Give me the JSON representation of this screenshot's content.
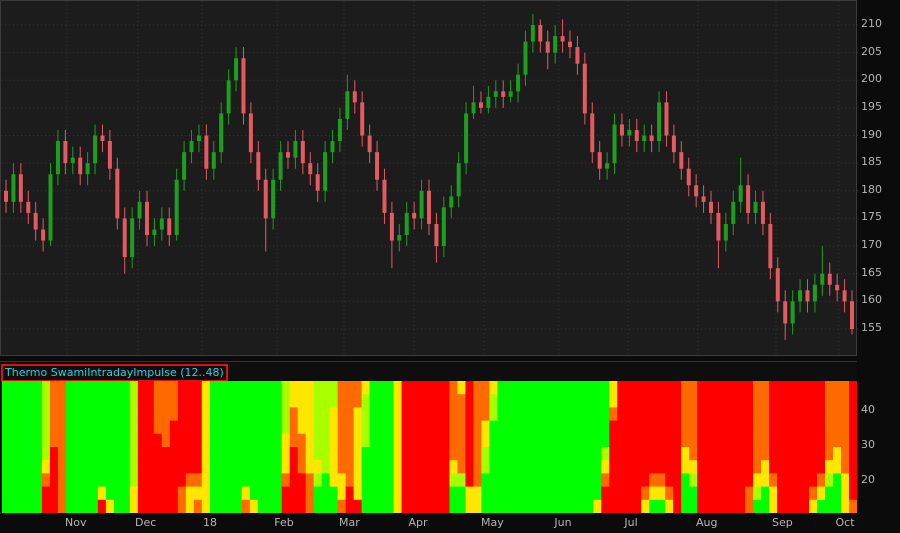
{
  "price_chart": {
    "type": "candlestick",
    "y_ticks": [
      155,
      160,
      165,
      170,
      175,
      180,
      185,
      190,
      195,
      200,
      205,
      210
    ],
    "colors": {
      "up": "#1e9e1e",
      "down": "#e35a60",
      "background": "#1c1c1c"
    },
    "candles": [
      [
        180,
        182,
        176,
        178
      ],
      [
        178,
        185,
        176,
        183
      ],
      [
        183,
        185,
        176,
        178
      ],
      [
        178,
        180,
        174,
        176
      ],
      [
        176,
        178,
        171,
        173
      ],
      [
        173,
        175,
        169,
        171
      ],
      [
        171,
        185,
        170,
        183
      ],
      [
        183,
        191,
        181,
        189
      ],
      [
        189,
        191,
        183,
        185
      ],
      [
        185,
        188,
        183,
        186
      ],
      [
        186,
        188,
        181,
        183
      ],
      [
        183,
        187,
        181,
        185
      ],
      [
        185,
        192,
        183,
        190
      ],
      [
        190,
        192,
        187,
        189
      ],
      [
        189,
        191,
        182,
        184
      ],
      [
        184,
        186,
        173,
        175
      ],
      [
        175,
        177,
        165,
        168
      ],
      [
        168,
        177,
        166,
        175
      ],
      [
        175,
        180,
        173,
        178
      ],
      [
        178,
        180,
        170,
        172
      ],
      [
        172,
        175,
        170,
        173
      ],
      [
        173,
        177,
        171,
        175
      ],
      [
        175,
        177,
        170,
        172
      ],
      [
        172,
        184,
        171,
        182
      ],
      [
        182,
        189,
        180,
        187
      ],
      [
        187,
        191,
        185,
        189
      ],
      [
        189,
        192,
        187,
        190
      ],
      [
        190,
        192,
        182,
        184
      ],
      [
        184,
        189,
        182,
        187
      ],
      [
        187,
        196,
        185,
        194
      ],
      [
        194,
        202,
        192,
        200
      ],
      [
        200,
        206,
        198,
        204
      ],
      [
        204,
        206,
        192,
        194
      ],
      [
        194,
        196,
        185,
        187
      ],
      [
        187,
        189,
        180,
        182
      ],
      [
        182,
        184,
        169,
        175
      ],
      [
        175,
        184,
        173,
        182
      ],
      [
        182,
        189,
        180,
        187
      ],
      [
        187,
        189,
        184,
        186
      ],
      [
        186,
        191,
        184,
        189
      ],
      [
        189,
        191,
        183,
        185
      ],
      [
        185,
        187,
        181,
        183
      ],
      [
        183,
        185,
        178,
        180
      ],
      [
        180,
        189,
        178,
        187
      ],
      [
        187,
        191,
        185,
        189
      ],
      [
        189,
        195,
        187,
        193
      ],
      [
        193,
        201,
        191,
        198
      ],
      [
        198,
        200,
        194,
        196
      ],
      [
        196,
        198,
        188,
        190
      ],
      [
        190,
        192,
        185,
        187
      ],
      [
        187,
        189,
        180,
        182
      ],
      [
        182,
        184,
        174,
        176
      ],
      [
        176,
        178,
        166,
        171
      ],
      [
        171,
        174,
        169,
        172
      ],
      [
        172,
        178,
        170,
        176
      ],
      [
        176,
        178,
        173,
        175
      ],
      [
        175,
        182,
        173,
        180
      ],
      [
        180,
        182,
        172,
        174
      ],
      [
        174,
        176,
        167,
        170
      ],
      [
        170,
        179,
        168,
        177
      ],
      [
        177,
        181,
        175,
        179
      ],
      [
        179,
        187,
        177,
        185
      ],
      [
        185,
        196,
        183,
        194
      ],
      [
        194,
        199,
        193,
        196
      ],
      [
        196,
        198,
        194,
        195
      ],
      [
        195,
        199,
        194,
        197
      ],
      [
        197,
        200,
        195,
        198
      ],
      [
        198,
        200,
        195,
        197
      ],
      [
        197,
        200,
        196,
        198
      ],
      [
        198,
        203,
        196,
        201
      ],
      [
        201,
        209,
        199,
        207
      ],
      [
        207,
        212,
        205,
        210
      ],
      [
        210,
        211,
        205,
        207
      ],
      [
        207,
        209,
        202,
        205
      ],
      [
        205,
        210,
        203,
        208
      ],
      [
        208,
        211,
        205,
        207
      ],
      [
        207,
        209,
        204,
        206
      ],
      [
        206,
        208,
        201,
        203
      ],
      [
        203,
        205,
        192,
        194
      ],
      [
        194,
        196,
        185,
        187
      ],
      [
        187,
        189,
        182,
        184
      ],
      [
        184,
        187,
        182,
        185
      ],
      [
        185,
        194,
        183,
        192
      ],
      [
        192,
        194,
        188,
        190
      ],
      [
        190,
        193,
        188,
        191
      ],
      [
        191,
        193,
        187,
        189
      ],
      [
        189,
        192,
        187,
        190
      ],
      [
        190,
        192,
        187,
        189
      ],
      [
        189,
        198,
        187,
        196
      ],
      [
        196,
        198,
        188,
        190
      ],
      [
        190,
        192,
        185,
        187
      ],
      [
        187,
        189,
        182,
        184
      ],
      [
        184,
        186,
        179,
        181
      ],
      [
        181,
        183,
        177,
        179
      ],
      [
        179,
        181,
        176,
        178
      ],
      [
        178,
        180,
        174,
        176
      ],
      [
        176,
        178,
        166,
        171
      ],
      [
        171,
        176,
        169,
        174
      ],
      [
        174,
        180,
        172,
        178
      ],
      [
        178,
        186,
        176,
        181
      ],
      [
        181,
        183,
        174,
        176
      ],
      [
        176,
        180,
        174,
        178
      ],
      [
        178,
        180,
        172,
        174
      ],
      [
        174,
        176,
        164,
        166
      ],
      [
        166,
        168,
        158,
        160
      ],
      [
        160,
        162,
        153,
        156
      ],
      [
        156,
        162,
        154,
        160
      ],
      [
        160,
        164,
        158,
        162
      ],
      [
        162,
        164,
        158,
        160
      ],
      [
        160,
        165,
        158,
        163
      ],
      [
        163,
        170,
        161,
        165
      ],
      [
        165,
        167,
        161,
        163
      ],
      [
        163,
        165,
        160,
        162
      ],
      [
        162,
        164,
        158,
        160
      ],
      [
        160,
        162,
        154,
        155
      ]
    ]
  },
  "study": {
    "title": "Thermo SwamiIntradayImpulse (12..48)",
    "y_ticks": [
      20,
      30,
      40
    ],
    "period_range": [
      12,
      48
    ],
    "level_colors": [
      "#ff0000",
      "#ff6a00",
      "#ffe600",
      "#a8ff00",
      "#00ff00"
    ],
    "heatmap_columns_top_to_bottom": [
      "4444444444",
      "4444444444",
      "4444444444",
      "4444444444",
      "4444444444",
      "3333332100",
      "1111100000",
      "1111111111",
      "4444444444",
      "4444444444",
      "4444444444",
      "4444444444",
      "4444444420",
      "4444444442",
      "4444444444",
      "4444444444",
      "3333333322",
      "0000000000",
      "0000000000",
      "1111000000",
      "1111100000",
      "1110000000",
      "0000000011",
      "0000000122",
      "0000000121",
      "2222222222",
      "4444444444",
      "4444444444",
      "4444444444",
      "4444444444",
      "4444444421",
      "4444444442",
      "4444444444",
      "4444444444",
      "4444444444",
      "3333222100",
      "2211100000",
      "2222111000",
      "2222222111",
      "3333332344",
      "3333333444",
      "3322222244",
      "1111111221",
      "1111111100",
      "1122222220",
      "2333344444",
      "4444444444",
      "4444444444",
      "4444444444",
      "2222222222",
      "0000000000",
      "0000000000",
      "0000000000",
      "0000000000",
      "0000000000",
      "0000000000",
      "1111112344",
      "2111111344",
      "0000000022",
      "1111111122",
      "1112233444",
      "2334444444",
      "4444444444",
      "4444444444",
      "4444444444",
      "4444444444",
      "4444444444",
      "4444444444",
      "4444444444",
      "4444444444",
      "4444444444",
      "4444444444",
      "4444444444",
      "4444444444",
      "4444444442",
      "4444432100",
      "2210000000",
      "0000000000",
      "0000000000",
      "0000000000",
      "0000000012",
      "0000000124",
      "0000000124",
      "0000000012",
      "0000000000",
      "1111122444",
      "1111112344",
      "0000000000",
      "0000000000",
      "0000000000",
      "0000000000",
      "0000000000",
      "0000000000",
      "0000000011",
      "1111111234",
      "1111112244",
      "0000000122",
      "0000000000",
      "0000000000",
      "0000000000",
      "0000000000",
      "0000000012",
      "0000000124",
      "1111112344",
      "1111122444",
      "1111111222",
      "0000000001"
    ]
  },
  "date_axis": {
    "labels": [
      "Nov",
      "Dec",
      "18",
      "Feb",
      "Mar",
      "Apr",
      "May",
      "Jun",
      "Jul",
      "Aug",
      "Sep",
      "Oct"
    ]
  }
}
